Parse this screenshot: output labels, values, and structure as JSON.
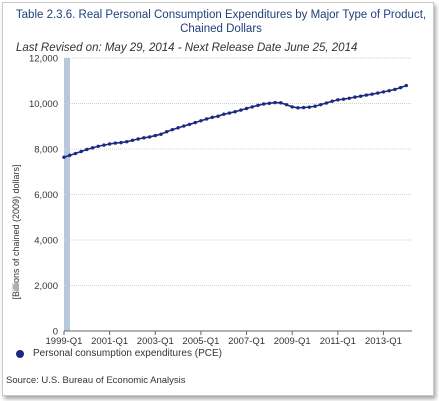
{
  "header": {
    "title_line1": "Table 2.3.6. Real Personal Consumption Expenditures by Major Type of Product,",
    "title_line2": "Chained Dollars",
    "revision": "Last Revised on: May 29, 2014 - Next Release Date June 25, 2014"
  },
  "footer": {
    "source": "Source: U.S. Bureau of Economic Analysis"
  },
  "colors": {
    "series": "#1a2a80",
    "shade": "#b8c8dc",
    "grid": "#d0d0d0"
  },
  "chart_data": {
    "type": "line",
    "ylabel": "[Billions of chained (2009) dollars]",
    "ylim": [
      0,
      12000
    ],
    "yticks": [
      0,
      2000,
      4000,
      6000,
      8000,
      10000,
      12000
    ],
    "ytick_labels": [
      "0",
      "2,000",
      "4,000",
      "6,000",
      "8,000",
      "10,000",
      "12,000"
    ],
    "xlim_quarter_index": [
      0,
      61
    ],
    "xticks_quarter_index": [
      0,
      8,
      16,
      24,
      32,
      40,
      48,
      56
    ],
    "xtick_labels": [
      "1999-Q1",
      "2001-Q1",
      "2003-Q1",
      "2005-Q1",
      "2007-Q1",
      "2009-Q1",
      "2011-Q1",
      "2013-Q1"
    ],
    "shaded_bands_quarter_index": [
      [
        0,
        0.8
      ]
    ],
    "legend": {
      "label": "Personal consumption expenditures (PCE)",
      "position": "bottom-left"
    },
    "series": [
      {
        "name": "Personal consumption expenditures (PCE)",
        "x": [
          "1999-Q1",
          "1999-Q2",
          "1999-Q3",
          "1999-Q4",
          "2000-Q1",
          "2000-Q2",
          "2000-Q3",
          "2000-Q4",
          "2001-Q1",
          "2001-Q2",
          "2001-Q3",
          "2001-Q4",
          "2002-Q1",
          "2002-Q2",
          "2002-Q3",
          "2002-Q4",
          "2003-Q1",
          "2003-Q2",
          "2003-Q3",
          "2003-Q4",
          "2004-Q1",
          "2004-Q2",
          "2004-Q3",
          "2004-Q4",
          "2005-Q1",
          "2005-Q2",
          "2005-Q3",
          "2005-Q4",
          "2006-Q1",
          "2006-Q2",
          "2006-Q3",
          "2006-Q4",
          "2007-Q1",
          "2007-Q2",
          "2007-Q3",
          "2007-Q4",
          "2008-Q1",
          "2008-Q2",
          "2008-Q3",
          "2008-Q4",
          "2009-Q1",
          "2009-Q2",
          "2009-Q3",
          "2009-Q4",
          "2010-Q1",
          "2010-Q2",
          "2010-Q3",
          "2010-Q4",
          "2011-Q1",
          "2011-Q2",
          "2011-Q3",
          "2011-Q4",
          "2012-Q1",
          "2012-Q2",
          "2012-Q3",
          "2012-Q4",
          "2013-Q1",
          "2013-Q2",
          "2013-Q3",
          "2013-Q4",
          "2014-Q1"
        ],
        "values": [
          7640,
          7720,
          7800,
          7890,
          7980,
          8050,
          8120,
          8170,
          8220,
          8260,
          8280,
          8320,
          8380,
          8440,
          8490,
          8530,
          8590,
          8650,
          8760,
          8850,
          8930,
          9010,
          9080,
          9160,
          9240,
          9320,
          9390,
          9440,
          9530,
          9580,
          9640,
          9710,
          9780,
          9850,
          9920,
          9980,
          10010,
          10040,
          10030,
          9950,
          9850,
          9810,
          9820,
          9840,
          9880,
          9950,
          10020,
          10100,
          10160,
          10190,
          10230,
          10280,
          10320,
          10370,
          10410,
          10460,
          10510,
          10560,
          10620,
          10700,
          10790
        ]
      }
    ]
  }
}
